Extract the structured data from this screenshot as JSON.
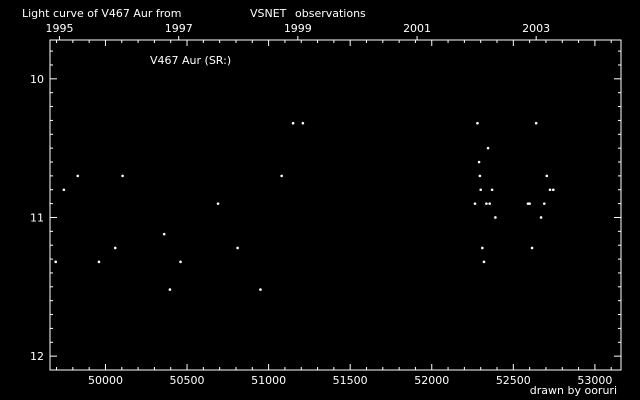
{
  "header": {
    "title_prefix": "Light curve of V467 Aur from",
    "title_source": "VSNET",
    "title_suffix": "observations",
    "source_color": "#ffff33"
  },
  "footer": {
    "credit": "drawn by ooruri",
    "credit_color": "#33cccc"
  },
  "chart_data": {
    "type": "scatter",
    "title": "V467 Aur (SR:)",
    "xlabel": "",
    "ylabel": "",
    "x_axis": {
      "range": [
        49660,
        53160
      ],
      "ticks": [
        50000,
        50500,
        51000,
        51500,
        52000,
        52500,
        53000
      ],
      "tick_labels": [
        "50000",
        "50500",
        "51000",
        "51500",
        "52000",
        "52500",
        "53000"
      ]
    },
    "x_axis_top": {
      "ticks": [
        49718,
        50449,
        51179,
        51910,
        52640
      ],
      "tick_labels": [
        "1995",
        "1997",
        "1999",
        "2001",
        "2003"
      ]
    },
    "y_axis": {
      "range": [
        9.72,
        12.1
      ],
      "inverted": true,
      "ticks": [
        10,
        11,
        12
      ],
      "tick_labels": [
        "10",
        "11",
        "12"
      ]
    },
    "point_color": "#ffffff",
    "series": [
      {
        "points": [
          [
            49695,
            11.32
          ],
          [
            49745,
            10.8
          ],
          [
            49830,
            10.7
          ],
          [
            49960,
            11.32
          ],
          [
            50060,
            11.22
          ],
          [
            50105,
            10.7
          ],
          [
            50360,
            11.12
          ],
          [
            50395,
            11.52
          ],
          [
            50460,
            11.32
          ],
          [
            50690,
            10.9
          ],
          [
            50810,
            11.22
          ],
          [
            50950,
            11.52
          ],
          [
            51080,
            10.7
          ],
          [
            51150,
            10.32
          ],
          [
            51210,
            10.32
          ],
          [
            52265,
            10.9
          ],
          [
            52280,
            10.32
          ],
          [
            52290,
            10.6
          ],
          [
            52295,
            10.7
          ],
          [
            52300,
            10.8
          ],
          [
            52310,
            11.22
          ],
          [
            52320,
            11.32
          ],
          [
            52335,
            10.9
          ],
          [
            52345,
            10.5
          ],
          [
            52355,
            10.9
          ],
          [
            52370,
            10.8
          ],
          [
            52390,
            11.0
          ],
          [
            52590,
            10.9
          ],
          [
            52600,
            10.9
          ],
          [
            52615,
            11.22
          ],
          [
            52640,
            10.32
          ],
          [
            52670,
            11.0
          ],
          [
            52690,
            10.9
          ],
          [
            52705,
            10.7
          ],
          [
            52725,
            10.8
          ],
          [
            52745,
            10.8
          ]
        ]
      }
    ]
  }
}
